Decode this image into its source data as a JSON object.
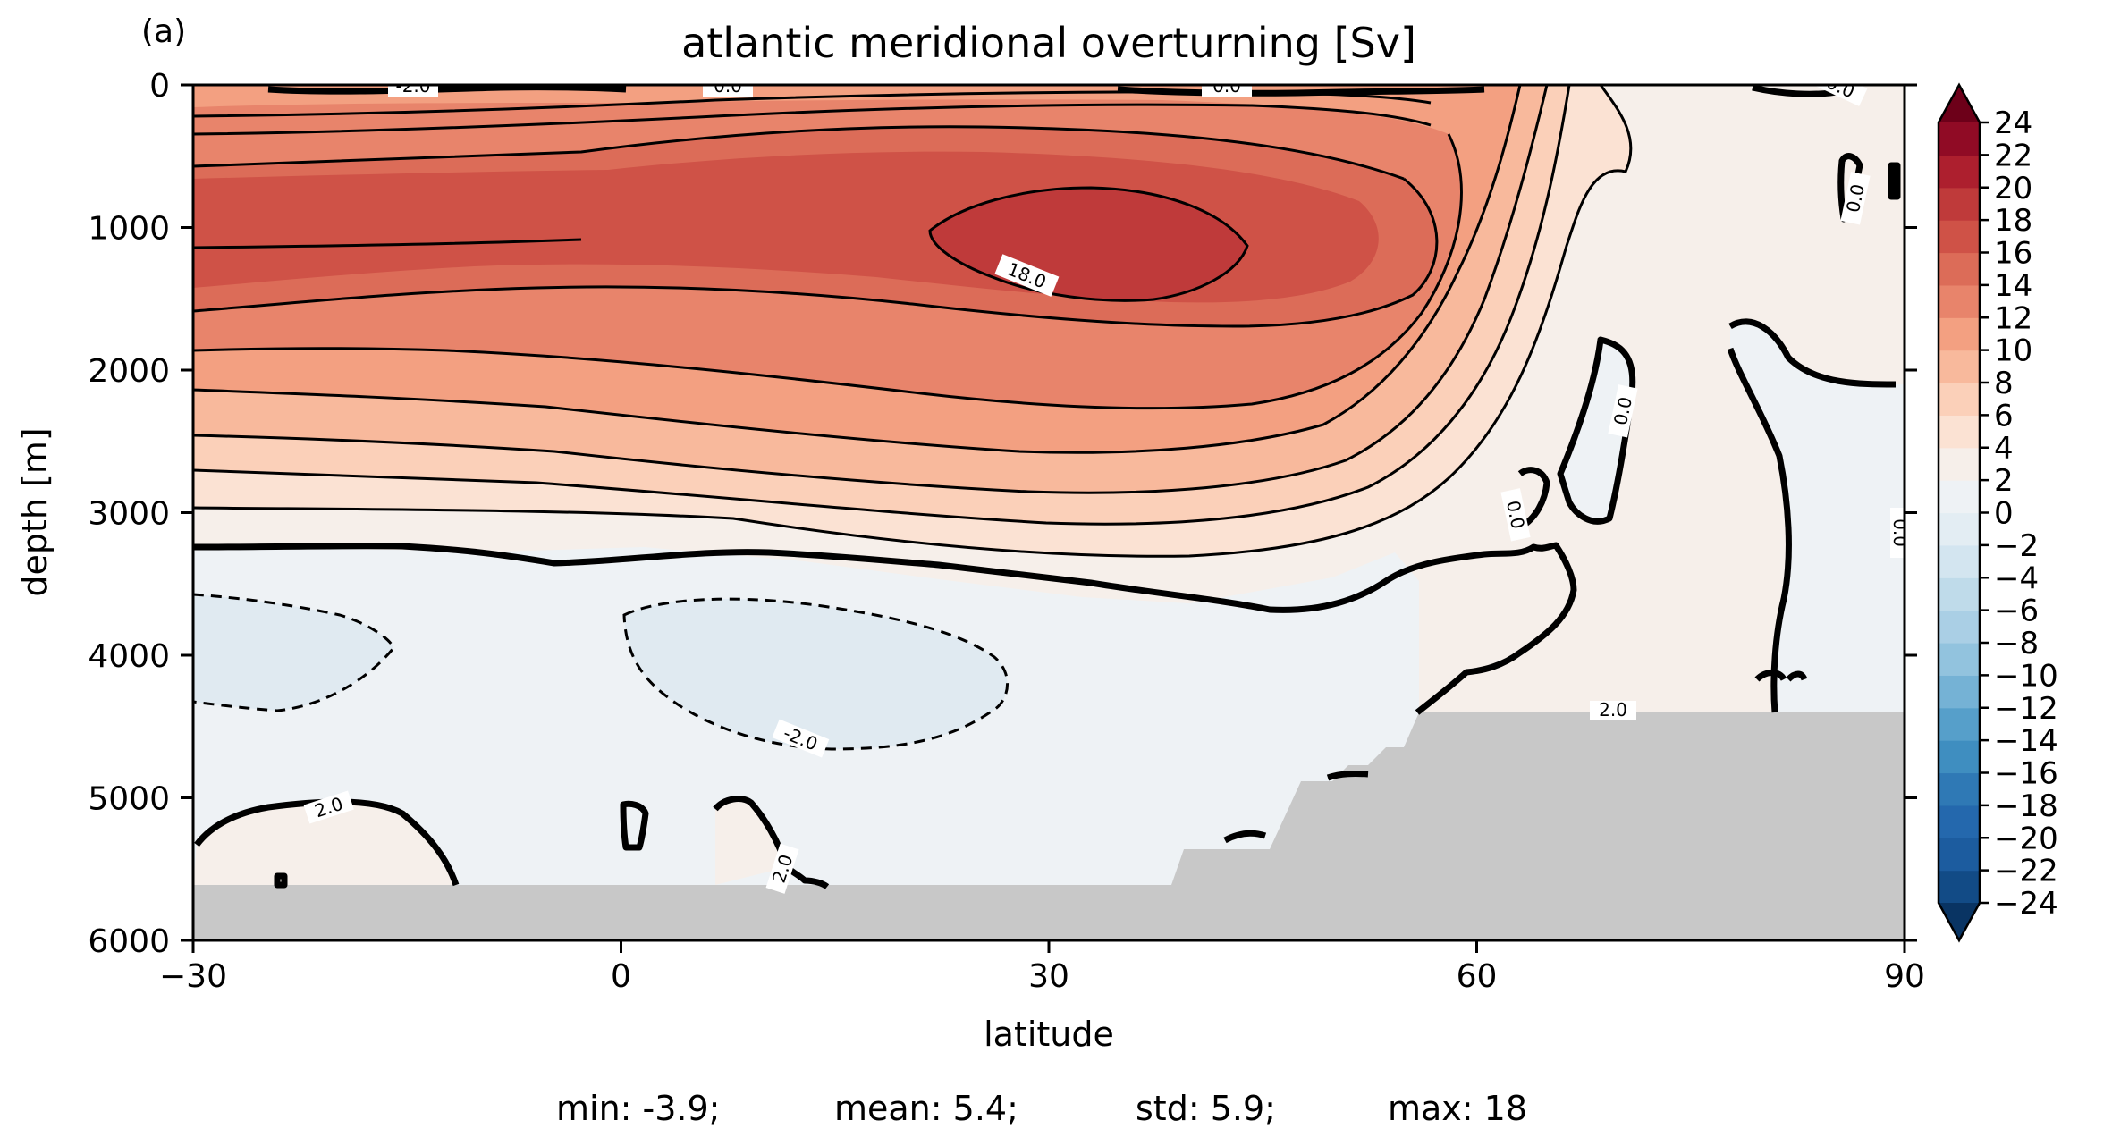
{
  "chart_data": {
    "type": "heatmap",
    "panel_label": "(a)",
    "title": "atlantic meridional overturning [Sv]",
    "xlabel": "latitude",
    "ylabel": "depth [m]",
    "xlim": [
      -30,
      90
    ],
    "ylim": [
      6000,
      0
    ],
    "x_ticks": [
      -30,
      0,
      30,
      60,
      90
    ],
    "x_tick_labels": [
      "−30",
      "0",
      "30",
      "60",
      "90"
    ],
    "y_ticks": [
      0,
      1000,
      2000,
      3000,
      4000,
      5000,
      6000
    ],
    "y_tick_labels": [
      "0",
      "1000",
      "2000",
      "3000",
      "4000",
      "5000",
      "6000"
    ],
    "colorbar": {
      "levels": [
        -24,
        -22,
        -20,
        -18,
        -16,
        -14,
        -12,
        -10,
        -8,
        -6,
        -4,
        -2,
        0,
        2,
        4,
        6,
        8,
        10,
        12,
        14,
        16,
        18,
        20,
        22,
        24
      ],
      "tick_labels": [
        "−24",
        "−22",
        "−20",
        "−18",
        "−16",
        "−14",
        "−12",
        "−10",
        "−8",
        "−6",
        "−4",
        "−2",
        "0",
        "2",
        "4",
        "6",
        "8",
        "10",
        "12",
        "14",
        "16",
        "18",
        "20",
        "22",
        "24"
      ],
      "colors": [
        "#124b86",
        "#1c5c9f",
        "#2468ad",
        "#2f79b5",
        "#3f8ec0",
        "#569fca",
        "#75b2d5",
        "#92c3de",
        "#aacfe5",
        "#bfdbea",
        "#d3e5f0",
        "#e3edf3",
        "#eef2f5",
        "#f6efea",
        "#fbe2d3",
        "#fbd0b9",
        "#f8b99c",
        "#f3a081",
        "#e8846b",
        "#dc6c58",
        "#cf5247",
        "#bf3a3a",
        "#ad1f2e",
        "#900b25"
      ],
      "extend_min_color": "#093463",
      "extend_max_color": "#6d0019"
    },
    "contour_labels": [
      "-2.0",
      "0.0",
      "0.0",
      "0.0",
      "18.0",
      "0.0",
      "0.0",
      "0.0",
      "0.0",
      "2.0",
      "-2.0",
      "2.0",
      "2.0"
    ],
    "land_mask_color": "#c8c8c8",
    "stats": {
      "min": "min: -3.9;",
      "mean": "mean: 5.4;",
      "std": "std: 5.9;",
      "max": "max: 18"
    },
    "summary": {
      "min": -3.9,
      "mean": 5.4,
      "std": 5.9,
      "max": 18
    }
  }
}
